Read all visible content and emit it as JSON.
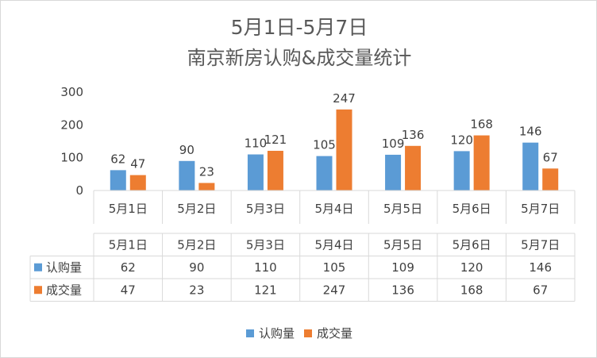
{
  "chart_data": {
    "type": "bar",
    "title_line1": "5月1日-5月7日",
    "title_line2": "南京新房认购&成交量统计",
    "categories": [
      "5月1日",
      "5月2日",
      "5月3日",
      "5月4日",
      "5月5日",
      "5月6日",
      "5月7日"
    ],
    "series": [
      {
        "name": "认购量",
        "color": "#5b9bd5",
        "values": [
          62,
          90,
          110,
          105,
          109,
          120,
          146
        ]
      },
      {
        "name": "成交量",
        "color": "#ed7d31",
        "values": [
          47,
          23,
          121,
          247,
          136,
          168,
          67
        ]
      }
    ],
    "ylim": [
      0,
      300
    ],
    "yticks": [
      0,
      100,
      200,
      300
    ],
    "grid": false,
    "legend": "bottom",
    "data_table": true
  }
}
